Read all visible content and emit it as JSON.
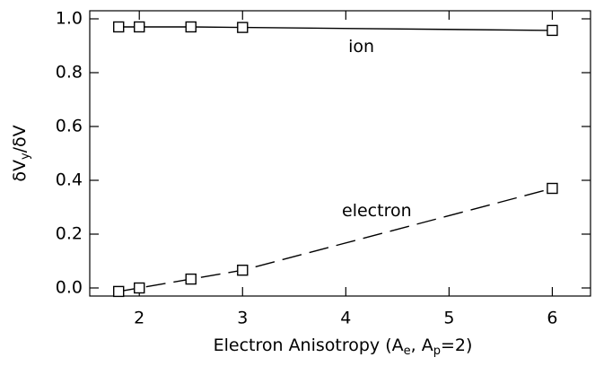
{
  "chart_data": {
    "type": "line",
    "xlabel": [
      "Electron Anisotropy (A",
      "e",
      ", A",
      "p",
      "=2)"
    ],
    "ylabel": [
      "δV",
      "y",
      "/δV"
    ],
    "x": [
      1.8,
      2,
      2.5,
      3,
      6
    ],
    "series": [
      {
        "name": "ion",
        "color": "#000000",
        "linestyle": "solid",
        "values": [
          0.97,
          0.97,
          0.97,
          0.968,
          0.957
        ]
      },
      {
        "name": "electron",
        "color": "#000000",
        "linestyle": "dashed",
        "values": [
          -0.013,
          0.0,
          0.033,
          0.066,
          0.37
        ]
      }
    ],
    "annotations": [
      {
        "text": "ion",
        "x": 4.15,
        "y": 0.895
      },
      {
        "text": "electron",
        "x": 4.3,
        "y": 0.285
      }
    ],
    "marker": "square",
    "xlim": [
      1.52,
      6.37
    ],
    "xticks": [
      2,
      3,
      4,
      5,
      6
    ],
    "ylim": [
      -0.03,
      1.03
    ],
    "yticks": [
      {
        "value": 0,
        "label": "0.0"
      },
      0.2,
      0.4,
      0.6,
      0.8,
      {
        "value": 1,
        "label": "1.0"
      }
    ]
  }
}
